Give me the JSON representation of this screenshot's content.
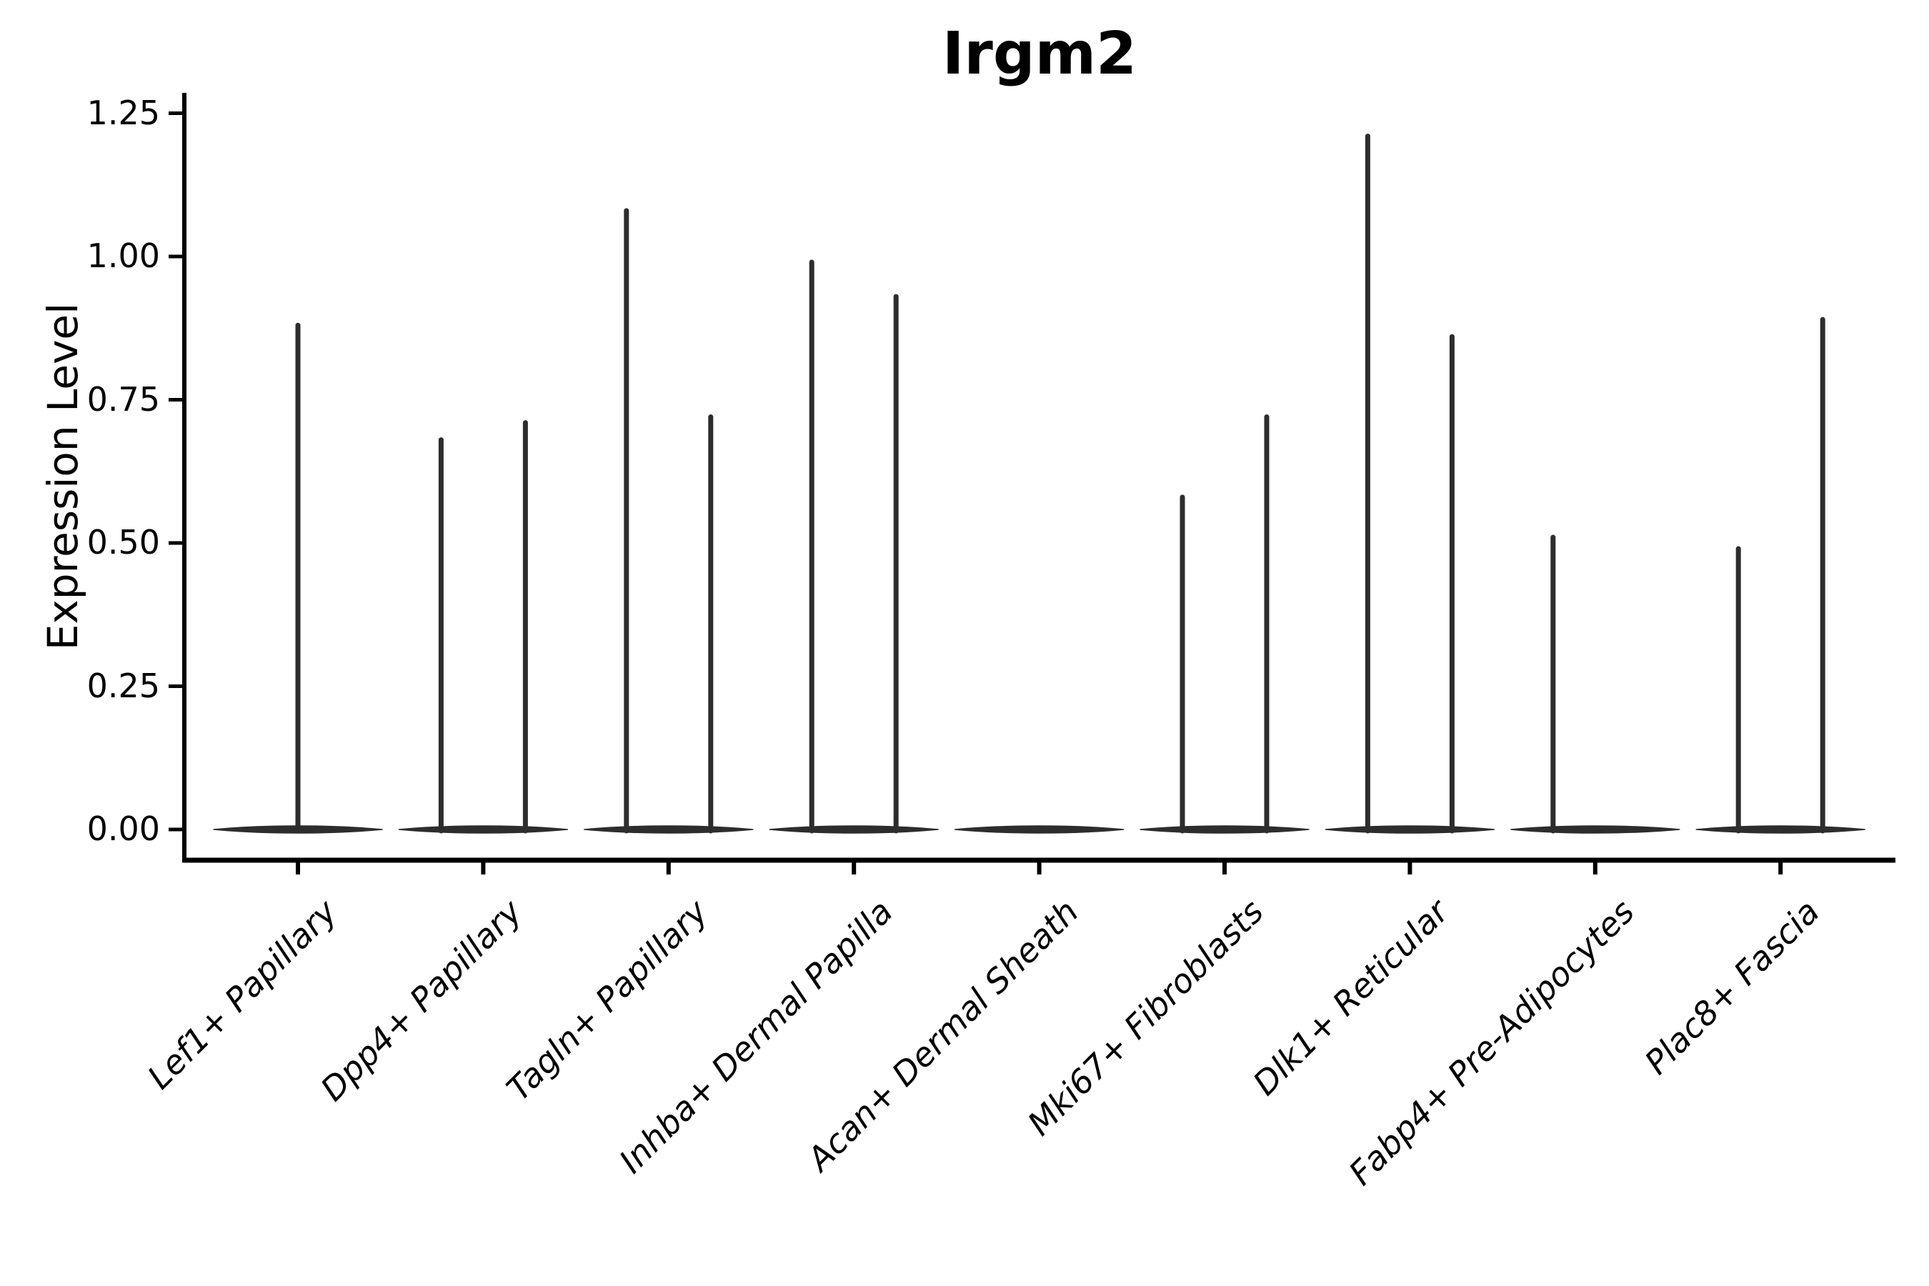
{
  "chart_data": {
    "type": "violin",
    "title": "Irgm2",
    "ylabel": "Expression Level",
    "xlabel": "",
    "ytick_labels": [
      "0.00",
      "0.25",
      "0.50",
      "0.75",
      "1.00",
      "1.25"
    ],
    "ytick_values": [
      0.0,
      0.25,
      0.5,
      0.75,
      1.0,
      1.25
    ],
    "ylim": [
      -0.05,
      1.3
    ],
    "grid": false,
    "legend": "none",
    "categories": [
      "Lef1+ Papillary",
      "Dpp4+ Papillary",
      "Tagln+ Papillary",
      "Inhba+ Dermal Papilla",
      "Acan+ Dermal Sheath",
      "Mki67+ Fibroblasts",
      "Dlk1+ Reticular",
      "Fabp4+ Pre-Adipocytes",
      "Plac8+ Fascia"
    ],
    "series": [
      {
        "category": "Lef1+ Papillary",
        "baseline_at_zero": true,
        "spikes": [
          {
            "position": "center",
            "max_expression": 0.88
          }
        ]
      },
      {
        "category": "Dpp4+ Papillary",
        "baseline_at_zero": true,
        "spikes": [
          {
            "position": "left",
            "max_expression": 0.68
          },
          {
            "position": "right",
            "max_expression": 0.71
          }
        ]
      },
      {
        "category": "Tagln+ Papillary",
        "baseline_at_zero": true,
        "spikes": [
          {
            "position": "left",
            "max_expression": 1.08
          },
          {
            "position": "right",
            "max_expression": 0.72
          }
        ]
      },
      {
        "category": "Inhba+ Dermal Papilla",
        "baseline_at_zero": true,
        "spikes": [
          {
            "position": "left",
            "max_expression": 0.99
          },
          {
            "position": "right",
            "max_expression": 0.93
          }
        ]
      },
      {
        "category": "Acan+ Dermal Sheath",
        "baseline_at_zero": true,
        "spikes": []
      },
      {
        "category": "Mki67+ Fibroblasts",
        "baseline_at_zero": true,
        "spikes": [
          {
            "position": "left",
            "max_expression": 0.58
          },
          {
            "position": "right",
            "max_expression": 0.72
          }
        ]
      },
      {
        "category": "Dlk1+ Reticular",
        "baseline_at_zero": true,
        "spikes": [
          {
            "position": "left",
            "max_expression": 1.21
          },
          {
            "position": "right",
            "max_expression": 0.86
          }
        ]
      },
      {
        "category": "Fabp4+ Pre-Adipocytes",
        "baseline_at_zero": true,
        "spikes": [
          {
            "position": "left",
            "max_expression": 0.51
          }
        ]
      },
      {
        "category": "Plac8+ Fascia",
        "baseline_at_zero": true,
        "spikes": [
          {
            "position": "left",
            "max_expression": 0.49
          },
          {
            "position": "right",
            "max_expression": 0.89
          }
        ]
      }
    ],
    "colors": {
      "violin_line": "#2d2d2d",
      "axis": "#000000",
      "text": "#000000",
      "background": "#ffffff"
    }
  }
}
